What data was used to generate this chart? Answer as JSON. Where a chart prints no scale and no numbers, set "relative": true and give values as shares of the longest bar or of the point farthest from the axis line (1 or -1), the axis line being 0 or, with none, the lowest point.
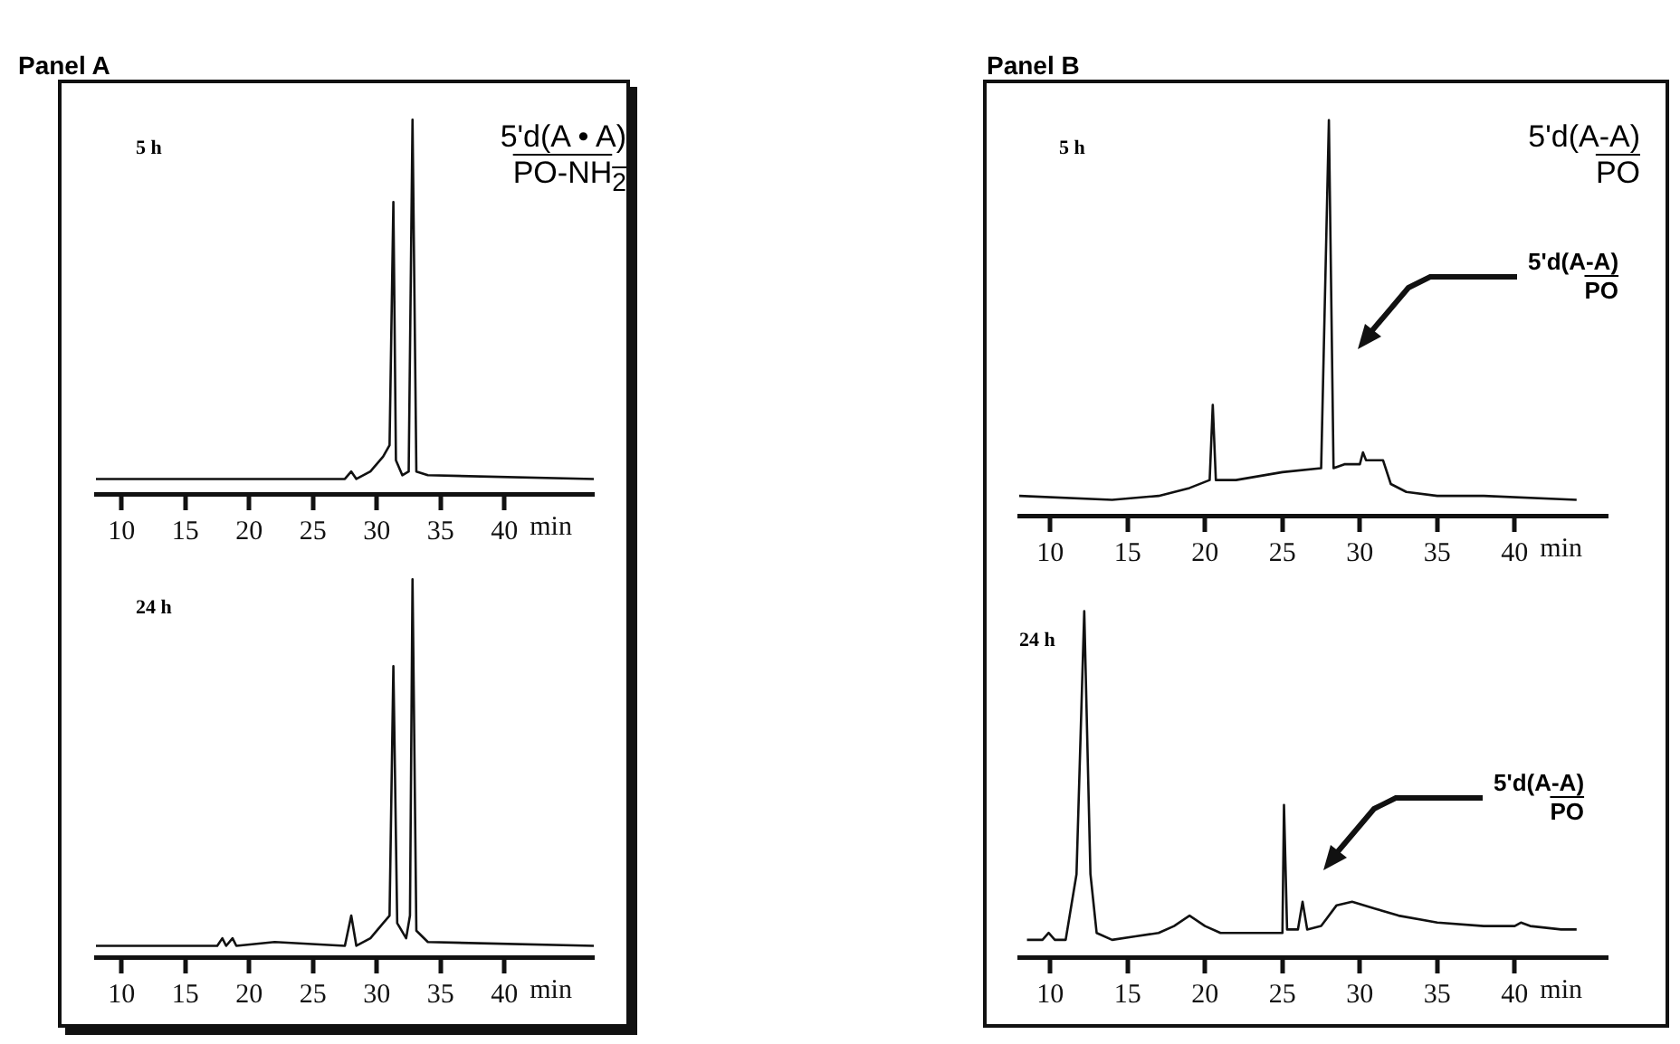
{
  "chart_data": [
    {
      "type": "line",
      "title": "Panel A",
      "subtitle": "5 h",
      "xlabel": "min",
      "relative": true,
      "xlim": [
        8,
        47
      ],
      "xticks": [
        10,
        15,
        20,
        25,
        30,
        35,
        40
      ],
      "grid": false,
      "legend": false,
      "marker": "none",
      "line_style": "solid",
      "annotations": [
        "5'd(A • A)\nPO-NH$_{2}$"
      ],
      "series": [
        {
          "color": "#111111",
          "x": [
            8,
            20,
            27.5,
            28,
            28.4,
            29.5,
            30.5,
            31,
            31.3,
            31.5,
            32,
            32.5,
            32.8,
            33.1,
            34,
            47
          ],
          "values": [
            0.04,
            0.04,
            0.04,
            0.06,
            0.04,
            0.06,
            0.1,
            0.13,
            0.78,
            0.09,
            0.05,
            0.06,
            1,
            0.06,
            0.05,
            0.04
          ]
        }
      ]
    },
    {
      "type": "line",
      "subtitle": "24 h",
      "xlabel": "min",
      "relative": true,
      "xlim": [
        8,
        47
      ],
      "xticks": [
        10,
        15,
        20,
        25,
        30,
        35,
        40
      ],
      "grid": false,
      "legend": false,
      "marker": "none",
      "line_style": "solid",
      "series": [
        {
          "color": "#111111",
          "x": [
            8,
            17.5,
            17.9,
            18.2,
            18.7,
            19,
            22,
            27.5,
            28,
            28.4,
            29.5,
            30.5,
            31,
            31.3,
            31.6,
            32.3,
            32.6,
            32.8,
            33.1,
            34,
            47
          ],
          "values": [
            0.03,
            0.03,
            0.05,
            0.03,
            0.05,
            0.03,
            0.04,
            0.03,
            0.11,
            0.03,
            0.05,
            0.09,
            0.11,
            0.77,
            0.09,
            0.05,
            0.11,
            1,
            0.07,
            0.04,
            0.03
          ]
        }
      ]
    },
    {
      "type": "line",
      "title": "Panel B",
      "subtitle": "5 h",
      "xlabel": "min",
      "relative": true,
      "xlim": [
        8,
        46
      ],
      "xticks": [
        10,
        15,
        20,
        25,
        30,
        35,
        40
      ],
      "grid": false,
      "legend": false,
      "marker": "none",
      "line_style": "solid",
      "annotations": [
        "5'd(A-A)\nPO",
        "5'd(A-A)\nPO"
      ],
      "series": [
        {
          "color": "#111111",
          "x": [
            8,
            14,
            17,
            19,
            20.3,
            20.5,
            20.7,
            22,
            25,
            27.5,
            28,
            28.3,
            29,
            30,
            30.2,
            30.4,
            31.5,
            32,
            33,
            35,
            38,
            44
          ],
          "values": [
            0.05,
            0.04,
            0.05,
            0.07,
            0.09,
            0.28,
            0.09,
            0.09,
            0.11,
            0.12,
            1,
            0.12,
            0.13,
            0.13,
            0.16,
            0.14,
            0.14,
            0.08,
            0.06,
            0.05,
            0.05,
            0.04
          ]
        }
      ]
    },
    {
      "type": "line",
      "subtitle": "24 h",
      "xlabel": "min",
      "relative": true,
      "xlim": [
        8,
        46
      ],
      "xticks": [
        10,
        15,
        20,
        25,
        30,
        35,
        40
      ],
      "grid": false,
      "legend": false,
      "marker": "none",
      "line_style": "solid",
      "annotations": [
        "5'd(A-A)\nPO"
      ],
      "series": [
        {
          "color": "#111111",
          "x": [
            8.5,
            9.5,
            9.9,
            10.3,
            11,
            11.7,
            12.2,
            12.6,
            13,
            14,
            15.5,
            17,
            18,
            19,
            20,
            21,
            23,
            25,
            25.1,
            25.3,
            26,
            26.3,
            26.6,
            27.5,
            28.5,
            29.5,
            31,
            32.5,
            35,
            38,
            40,
            40.4,
            41,
            43,
            44
          ],
          "values": [
            0.05,
            0.05,
            0.07,
            0.05,
            0.05,
            0.24,
            1,
            0.24,
            0.07,
            0.05,
            0.06,
            0.07,
            0.09,
            0.12,
            0.09,
            0.07,
            0.07,
            0.07,
            0.44,
            0.08,
            0.08,
            0.16,
            0.08,
            0.09,
            0.15,
            0.16,
            0.14,
            0.12,
            0.1,
            0.09,
            0.09,
            0.1,
            0.09,
            0.08,
            0.08
          ]
        }
      ]
    }
  ]
}
